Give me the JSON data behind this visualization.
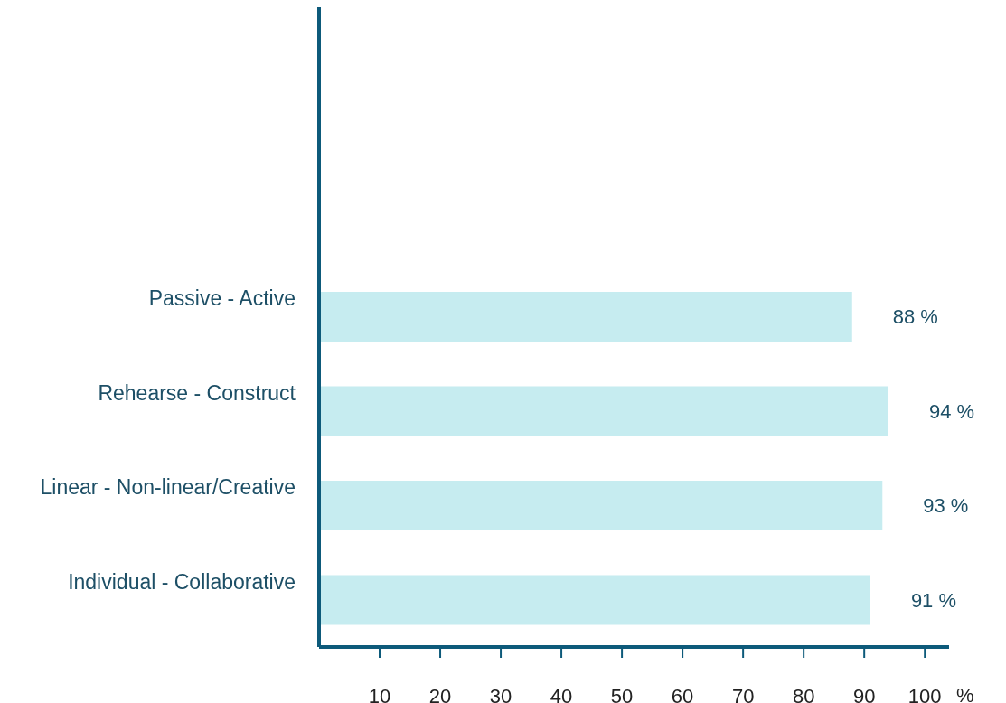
{
  "chart_data": {
    "type": "bar",
    "orientation": "horizontal",
    "categories": [
      "Passive - Active",
      "Rehearse - Construct",
      "Linear - Non-linear/Creative",
      "Individual - Collaborative"
    ],
    "values": [
      88,
      94,
      93,
      91
    ],
    "value_labels": [
      "88 %",
      "94 %",
      "93 %",
      "91 %"
    ],
    "color": "#c6ecf0",
    "xlabel": "%",
    "xlim": [
      0,
      104
    ],
    "xticks": [
      10,
      20,
      30,
      40,
      50,
      60,
      70,
      80,
      90,
      100
    ],
    "grid": false,
    "legend": false
  }
}
